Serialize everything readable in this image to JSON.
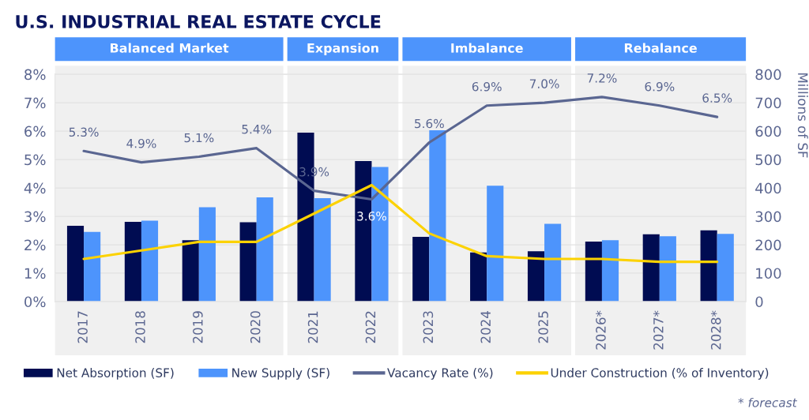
{
  "chart_data": {
    "type": "bar",
    "title": "U.S. INDUSTRIAL REAL ESTATE CYCLE",
    "categories": [
      "2017",
      "2018",
      "2019",
      "2020",
      "2021",
      "2022",
      "2023",
      "2024",
      "2025",
      "2026*",
      "2027*",
      "2028*"
    ],
    "series": [
      {
        "name": "Net Absorption (SF)",
        "axis": "y2",
        "color": "#000c52",
        "values": [
          267,
          281,
          216,
          279,
          595,
          495,
          228,
          173,
          177,
          211,
          237,
          251
        ]
      },
      {
        "name": "New Supply (SF)",
        "axis": "y2",
        "color": "#4d94fc",
        "values": [
          245,
          285,
          332,
          367,
          364,
          474,
          603,
          408,
          274,
          216,
          230,
          238
        ]
      },
      {
        "name": "Vacancy Rate (%)",
        "type": "line",
        "color": "#5a6691",
        "values": [
          5.3,
          4.9,
          5.1,
          5.4,
          3.9,
          3.6,
          5.6,
          6.9,
          7.0,
          7.2,
          6.9,
          6.5
        ],
        "value_labels": [
          "5.3%",
          "4.9%",
          "5.1%",
          "5.4%",
          "3.9%",
          "3.6%",
          "5.6%",
          "6.9%",
          "7.0%",
          "7.2%",
          "6.9%",
          "6.5%"
        ]
      },
      {
        "name": "Under Construction (% of Inventory)",
        "type": "line",
        "color": "#fcd200",
        "values": [
          1.5,
          1.8,
          2.1,
          2.1,
          3.1,
          4.1,
          2.4,
          1.6,
          1.5,
          1.5,
          1.4,
          1.4
        ]
      }
    ],
    "ylim": [
      0,
      8
    ],
    "yticks": [
      {
        "value": 0,
        "label": "0%"
      },
      {
        "value": 1,
        "label": "1%"
      },
      {
        "value": 2,
        "label": "2%"
      },
      {
        "value": 3,
        "label": "3%"
      },
      {
        "value": 4,
        "label": "4%"
      },
      {
        "value": 5,
        "label": "5%"
      },
      {
        "value": 6,
        "label": "6%"
      },
      {
        "value": 7,
        "label": "7%"
      },
      {
        "value": 8,
        "label": "8%"
      }
    ],
    "y2lim": [
      0,
      800
    ],
    "y2ticks": [
      0,
      100,
      200,
      300,
      400,
      500,
      600,
      700,
      800
    ],
    "y2label": "Millions of SF",
    "grid": "y",
    "legend": "bottom",
    "bands": [
      {
        "axis": "x",
        "from": "2017",
        "to": "2020",
        "label": "Balanced Market",
        "color": "#f0f0f0"
      },
      {
        "axis": "x",
        "from": "2021",
        "to": "2022",
        "label": "Expansion",
        "color": "#f0f0f0"
      },
      {
        "axis": "x",
        "from": "2023",
        "to": "2025",
        "label": "Imbalance",
        "color": "#f0f0f0"
      },
      {
        "axis": "x",
        "from": "2026*",
        "to": "2028*",
        "label": "Rebalance",
        "color": "#f0f0f0"
      }
    ],
    "annotations": [
      "* forecast"
    ]
  }
}
